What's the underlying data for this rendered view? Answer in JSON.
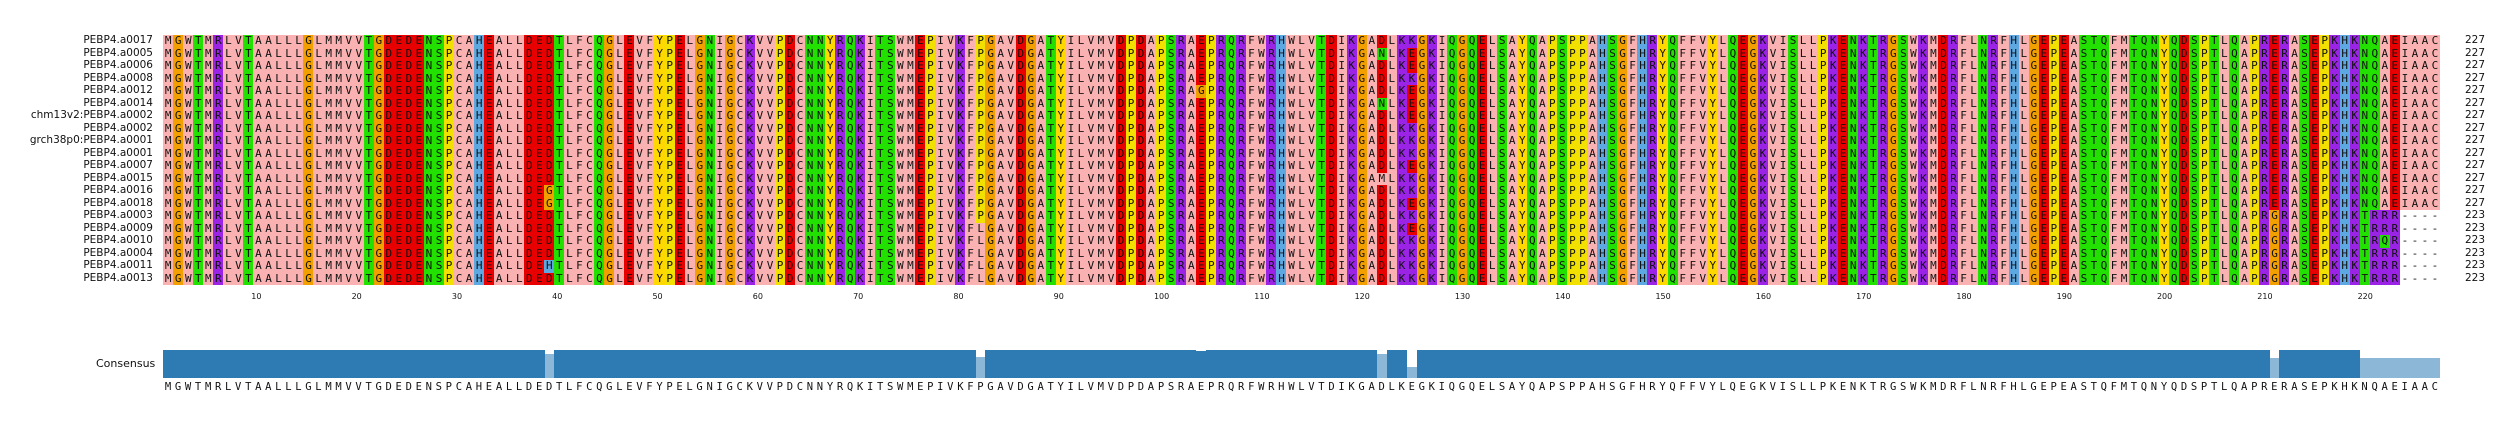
{
  "alignment": {
    "sequences": [
      {
        "name": "PEBP4.a0017",
        "count": "227",
        "seq": "MGWTMRLVTAALLLGLMMVVTGDEDENSPCAHEALLDEDTLFCQGLEVFYPELGNIGCKVVPDCNNYRQKITSWMEPIVKFPGAVDGATYILVMVDPDAPSRAEPRQRFWRHWLVTDIKGADLKKGKIQGQELSAYQAPSPPAHSGFHRYQFFVYLQEGKVISLLPKENKTRGSWKMDRFLNRFHLGEPEASTQFMTQNYQDSPTLQAPRERASEPKHKNQAEIAAC"
      },
      {
        "name": "PEBP4.a0005",
        "count": "227",
        "seq": "MGWTMRLVTAALLLGLMMVVTGDEDENSPCAHEALLDEDTLFCQGLEVFYPELGNIGCKVVPDCNNYRQKITSWMEPIVKFPGAVDGATYILVMVDPDAPSRAEPRQRFWRHWLVTDIKGANLKEGKIQGQELSAYQAPSPPAHSGFHRYQFFVYLQEGKVISLLPKENKTRGSWKMDRFLNRFHLGEPEASTQFMTQNYQDSPTLQAPRERASEPKHKNQAEIAAC"
      },
      {
        "name": "PEBP4.a0006",
        "count": "227",
        "seq": "MGWTMRLVTAALLLGLMMVVTGDEDENSPCAHEALLDEDTLFCQGLEVFYPELGNIGCKVVPDCNNYRQKITSWMEPIVKFPGAVDGATYILVMVDPDAPSRAEPRQRFWRHWLVTDIKGADLKEGKIQGQELSAYQAPSPPAHSGFHRYQFFVYLQEGKVISLLPKENKTRGSWKMDRFLNRFHLGEPEASTQFMTQNYQDSPTLQAPRERASEPKHKNQAEIAAC"
      },
      {
        "name": "PEBP4.a0008",
        "count": "227",
        "seq": "MGWTMRLVTAALLLGLMMVVTGDEDENSPCAHEALLDEDTLFCQGLEVFYPELGNIGCKVVPDCNNYRQKITSWMEPIVKFPGAVDGATYILVMVDPDAPSRAEPRQRFWRHWLVTDIKGADLKKGKIQGQELSAYQAPSPPAHSGFHRYQFFVYLQEGKVISLLPKENKTRGSWKMDRFLNRFHLGEPEASTQFMTQNYQDSPTLQAPRERASEPKHKNQAEIAAC"
      },
      {
        "name": "PEBP4.a0012",
        "count": "227",
        "seq": "MGWTMRLVTAALLLGLMMVVTGDEDENSPCAHEALLDEDTLFCQGLEVFYPELGNIGCKVVPDCNNYRQKITSWMEPIVKFPGAVDGATYILVMVDPDAPSRAGPRQRFWRHWLVTDIKGADLKEGKIQGQELSAYQAPSPPAHSGFHRYQFFVYLQEGKVISLLPKENKTRGSWKMDRFLNRFHLGEPEASTQFMTQNYQDSPTLQAPRERASEPKHKNQAEIAAC"
      },
      {
        "name": "PEBP4.a0014",
        "count": "227",
        "seq": "MGWTMRLVTAALLLGLMMVVTGDEDENSPCAHEALLDEDTLFCQGLEVFYPELGNIGCKVVPDCNNYRQKITSWMEPIVKFPGAVDGATYILVMVDPDAPSRAEPRQRFWRHWLVTDIKGANLKEGKIQGQELSAYQAPSPPAHSGFHRYQFFVYLQEGKVISLLPKENKTRGSWKMDRFLNRFHLGEPEASTQFMTQNYQDSPTLQAPRERASEPKHKNQAEIAAC"
      },
      {
        "name": "chm13v2:PEBP4.a0002",
        "count": "227",
        "seq": "MGWTMRLVTAALLLGLMMVVTGDEDENSPCAHEALLDEDTLFCQGLEVFYPELGNIGCKVVPDCNNYRQKITSWMEPIVKFPGAVDGATYILVMVDPDAPSRAEPRQRFWRHWLVTDIKGADLKEGKIQGQELSAYQAPSPPAHSGFHRYQFFVYLQEGKVISLLPKENKTRGSWKMDRFLNRFHLGEPEASTQFMTQNYQDSPTLQAPRERASEPKHKNQAEIAAC"
      },
      {
        "name": "PEBP4.a0002",
        "count": "227",
        "seq": "MGWTMRLVTAALLLGLMMVVTGDEDENSPCAHEALLDEDTLFCQGLEVFYPELGNIGCKVVPDCNNYRQKITSWMEPIVKFPGAVDGATYILVMVDPDAPSRAEPRQRFWRHWLVTDIKGADLKKGKIQGQELSAYQAPSPPAHSGFHRYQFFVYLQEGKVISLLPKENKTRGSWKMDRFLNRFHLGEPEASTQFMTQNYQDSPTLQAPRERASEPKHKNQAEIAAC"
      },
      {
        "name": "grch38p0:PEBP4.a0001",
        "count": "227",
        "seq": "MGWTMRLVTAALLLGLMMVVTGDEDENSPCAHEALLDEDTLFCQGLEVFYPELGNIGCKVVPDCNNYRQKITSWMEPIVKFPGAVDGATYILVMVDPDAPSRAEPRQRFWRHWLVTDIKGADLKKGKIQGQELSAYQAPSPPAHSGFHRYQFFVYLQEGKVISLLPKENKTRGSWKMDRFLNRFHLGEPEASTQFMTQNYQDSPTLQAPRERASEPKHKNQAEIAAC"
      },
      {
        "name": "PEBP4.a0001",
        "count": "227",
        "seq": "MGWTMRLVTAALLLGLMMVVTGDEDENSPCAHEALLDEDTLFCQGLEVFYPELGNIGCKVVPDCNNYRQKITSWMEPIVKFPGAVDGATYILVMVDPDAPSRAEPRQRFWRHWLVTDIKGADLKKGKIQGQELSAYQAPSPPAHSGFHRYQFFVYLQEGKVISLLPKENKTRGSWKMDRFLNRFHLGEPEASTQFMTQNYQDSPTLQAPRERASEPKHKNQAEIAAC"
      },
      {
        "name": "PEBP4.a0007",
        "count": "227",
        "seq": "MGWTMRLVTAALLLGLMMVVTGDEDENSPCAHEALLDEDTLFCQGLEVFYPELGNIGCKVVPDCNNYRQKITSWMEPIVKFPGAVDGATYILVMVDPDAPSRAEPRQRFWRHWLVTDIKGADLKEGKIQGQELSAYQAPSPPAHSGFHRYQFFVYLQEGKVISLLPKENKTRGSWKMDRFLNRFHLGEPEASTQFMTQNYQDSPTLQAPRERASEPKHKNQAEIAAC"
      },
      {
        "name": "PEBP4.a0015",
        "count": "227",
        "seq": "MGWTMRLVTAALLLGLMMVVTGDEDENSPCAHEALLDEDTLFCQGLEVFYPELGNIGCKVVPDCNNYRQKITSWMEPIVKFPGAVDGATYILVMVDPDAPSRAEPRQRFWRHWLVTDIKGAMLKKGKIQGQELSAYQAPSPPAHSGFHRYQFFVYLQEGKVISLLPKENKTRGSWKMDRFLNRFHLGEPEASTQFMTQNYQDSPTLQAPRERASEPKHKNQAEIAAC"
      },
      {
        "name": "PEBP4.a0016",
        "count": "227",
        "seq": "MGWTMRLVTAALLLGLMMVVTGDEDENSPCAHEALLDEGTLFCQGLEVFYPELGNIGCKVVPDCNNYRQKITSWMEPIVKFPGAVDGATYILVMVDPDAPSRAEPRQRFWRHWLVTDIKGADLKKGKIQGQELSAYQAPSPPAHSGFHRYQFFVYLQEGKVISLLPKENKTRGSWKMDRFLNRFHLGEPEASTQFMTQNYQDSPTLQAPRERASEPKHKNQAEIAAC"
      },
      {
        "name": "PEBP4.a0018",
        "count": "227",
        "seq": "MGWTMRLVTAALLLGLMMVVTGDEDENSPCAHEALLDEGTLFCQGLEVFYPELGNIGCKVVPDCNNYRQKITSWMEPIVKFPGAVDGATYILVMVDPDAPSRAEPRQRFWRHWLVTDIKGADLKEGKIQGQELSAYQAPSPPAHSGFHRYQFFVYLQEGKVISLLPKENKTRGSWKMDRFLNRFHLGEPEASTQFMTQNYQDSPTLQAPRERASEPKHKNQAEIAAC"
      },
      {
        "name": "PEBP4.a0003",
        "count": "223",
        "seq": "MGWTMRLVTAALLLGLMMVVTGDEDENSPCAHEALLDEDTLFCQGLEVFYPELGNIGCKVVPDCNNYRQKITSWMEPIVKFPGAVDGATYILVMVDPDAPSRAEPRQRFWRHWLVTDIKGADLKKGKIQGQELSAYQAPSPPAHSGFHRYQFFVYLQEGKVISLLPKENKTRGSWKMDRFLNRFHLGEPEASTQFMTQNYQDSPTLQAPRGRASEPKHKTRRR----"
      },
      {
        "name": "PEBP4.a0009",
        "count": "223",
        "seq": "MGWTMRLVTAALLLGLMMVVTGDEDENSPCAHEALLDEDTLFCQGLEVFYPELGNIGCKVVPDCNNYRQKITSWMEPIVKFLGAVDGATYILVMVDPDAPSRAEPRQRFWRHWLVTDIKGADLKEGKIQGQELSAYQAPSPPAHSGFHRYQFFVYLQEGKVISLLPKENKTRGSWKMDRFLNRFHLGEPEASTQFMTQNYQDSPTLQAPRGRASEPKHKTRRR----"
      },
      {
        "name": "PEBP4.a0010",
        "count": "223",
        "seq": "MGWTMRLVTAALLLGLMMVVTGDEDENSPCAHEALLDEDTLFCQGLEVFYPELGNIGCKVVPDCNNYRQKITSWMEPIVKFLGAVDGATYILVMVDPDAPSRAEPRQRFWRHWLVTDIKGADLKKGKIQGQELSAYQAPSPPAHSGFHRYQFFVYLQEGKVISLLPKENKTRGSWKMDRFLNRFHLGEPEASTQFMTQNYQDSPTLQAPRGRASEPKHKTRQR----"
      },
      {
        "name": "PEBP4.a0004",
        "count": "223",
        "seq": "MGWTMRLVTAALLLGLMMVVTGDEDENSPCAHEALLDEDTLFCQGLEVFYPELGNIGCKVVPDCNNYRQKITSWMEPIVKFLGAVDGATYILVMVDPDAPSRAEPRQRFWRHWLVTDIKGADLKKGKIQGQELSAYQAPSPPAHSGFHRYQFFVYLQEGKVISLLPKENKTRGSWKMDRFLNRFHLGEPEASTQFMTQNYQDSPTLQAPRGRASEPKHKTRRR----"
      },
      {
        "name": "PEBP4.a0011",
        "count": "223",
        "seq": "MGWTMRLVTAALLLGLMMVVTGDEDENSPCAHEALLDEHTLFCQGLEVFYPELGNIGCKVVPDCNNYRQKITSWMEPIVKFLGAVDGATYILVMVDPDAPSRAEPRQRFWRHWLVTDIKGADLKKGKIQGQELSAYQAPSPPAHSGFHRYQFFVYLQEGKVISLLPKENKTRGSWKMDRFLNRFHLGEPEASTQFMTQNYQDSPTLQAPRGRASEPKHKTRRR----"
      },
      {
        "name": "PEBP4.a0013",
        "count": "223",
        "seq": "MGWTMRLVTAALLLGLMMVVTGDEDENSPCAHEALLDEDTLFCQGLEVFYPELGNIGCKVVPDCNNYRQKITSWMEPIVKFLGAVDGATYILVMVDPDAPSRAEPRQRFWRHWLVTDIKGADLKKGKIQGQELSAYQAPSPPAHSGFHRYQFFVYLQEGKVISLLPKENKTRGSWKMDRFLNRFHLGEPEASTQFMTQNYQDSPTLQAPRGRASEPKHKTRRR----"
      }
    ],
    "ruler_ticks": [
      "10",
      "20",
      "30",
      "40",
      "50",
      "60",
      "70",
      "80",
      "90",
      "100",
      "110",
      "120",
      "130",
      "140",
      "150",
      "160",
      "170",
      "180",
      "190",
      "200",
      "210",
      "220"
    ],
    "consensus_label": "Consensus",
    "consensus_seq": "MGWTMRLVTAALLLGLMMVVTGDEDENSPCAHEALLDEDTLFCQGLEVFYPELGNIGCKVVPDCNNYRQKITSWMEPIVKFPGAVDGATYILVMVDPDAPSRAEPRQRFWRHWLVTDIKGADLKEGKIQGQELSAYQAPSPPAHSGFHRYQFFVYLQEGKVISLLPKENKTRGSWKMDRFLNRFHLGEPEASTQFMTQNYQDSPTLQAPRERASEPKHKNQAEIAAC",
    "residue_colors": {
      "A": "#f9b1b1",
      "V": "#f9b1b1",
      "L": "#f9b1b1",
      "I": "#f9b1b1",
      "M": "#f9b1b1",
      "F": "#f9b1b1",
      "W": "#f9b1b1",
      "C": "#f9b1b1",
      "D": "#e80000",
      "E": "#e80000",
      "K": "#9a23e6",
      "R": "#9a23e6",
      "H": "#5da8e0",
      "S": "#22e000",
      "T": "#22e000",
      "N": "#22e000",
      "Q": "#22e000",
      "G": "#f2a000",
      "P": "#f2e100",
      "Y": "#ffd800",
      "-": "#ffffff"
    },
    "consensus_bar_color": "#2e7bb4"
  }
}
